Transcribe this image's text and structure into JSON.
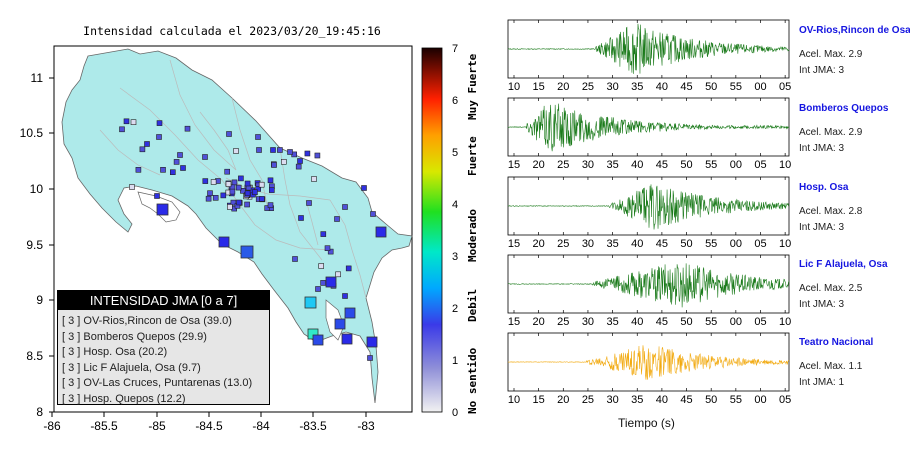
{
  "map": {
    "title": "Intensidad calculada el 2023/03/20_19:45:16",
    "x_ticks": [
      "-86",
      "-85.5",
      "-85",
      "-84.5",
      "-84",
      "-83.5",
      "-83"
    ],
    "y_ticks": [
      "8",
      "8.5",
      "9",
      "9.5",
      "10",
      "10.5",
      "11"
    ],
    "colorbar_ticks": [
      "0",
      "1",
      "2",
      "3",
      "4",
      "5",
      "6",
      "7"
    ],
    "colorbar_categories": [
      "No sentido",
      "Debil",
      "Moderado",
      "Fuerte",
      "Muy Fuerte"
    ],
    "colors": {
      "land": "#aeeaea",
      "boundary": "#c0c0c0",
      "outline": "#666666",
      "small_marker": "#4a4ae0",
      "large_marker": "#2828e8",
      "marker_cyan": "#20c0f0",
      "marker_green": "#30e8c0"
    }
  },
  "legend": {
    "title": "INTENSIDAD JMA [0 a 7]",
    "rows": [
      "[ 3 ]  OV-Rios,Rincon de Osa (39.0)",
      "[ 3 ]  Bomberos Quepos (29.9)",
      "[ 3 ]  Hosp. Osa (20.2)",
      "[ 3 ]  Lic F Alajuela, Osa (9.7)",
      "[ 3 ]  OV-Las Cruces, Puntarenas (13.0)",
      "[ 3 ]  Hosp. Quepos (12.2)"
    ]
  },
  "chart_data": {
    "type": "waveform",
    "xlabel": "Tiempo (s)",
    "stations": [
      {
        "name": "OV-Rios,Rincon de Osa",
        "acel": "Acel. Max. 2.9",
        "int": "Int JMA: 3",
        "color": "#1a7a1a",
        "ticks": [
          "10",
          "15",
          "20",
          "25",
          "30",
          "35",
          "40",
          "45",
          "50",
          "55",
          "00",
          "05"
        ],
        "onset": 0.31,
        "peak": 0.45,
        "amp": 1.0
      },
      {
        "name": "Bomberos Quepos",
        "acel": "Acel. Max. 2.9",
        "int": "Int JMA: 3",
        "color": "#1a7a1a",
        "ticks": [
          "15",
          "20",
          "25",
          "30",
          "35",
          "40",
          "45",
          "50",
          "55",
          "00",
          "05",
          "10"
        ],
        "onset": 0.06,
        "peak": 0.15,
        "amp": 1.0
      },
      {
        "name": "Hosp. Osa",
        "acel": "Acel. Max. 2.8",
        "int": "Int JMA: 3",
        "color": "#1a7a1a",
        "ticks": [
          "15",
          "20",
          "25",
          "30",
          "35",
          "40",
          "45",
          "50",
          "55",
          "00",
          "05",
          "10"
        ],
        "onset": 0.36,
        "peak": 0.52,
        "amp": 0.9
      },
      {
        "name": "Lic F Alajuela, Osa",
        "acel": "Acel. Max. 2.5",
        "int": "Int JMA: 3",
        "color": "#1a7a1a",
        "ticks": [
          "15",
          "20",
          "25",
          "30",
          "35",
          "40",
          "45",
          "50",
          "55",
          "00",
          "05",
          "10"
        ],
        "onset": 0.3,
        "peak": 0.62,
        "amp": 0.9
      },
      {
        "name": "Teatro Nacional",
        "acel": "Acel. Max. 1.1",
        "int": "Int JMA: 1",
        "color": "#f2aa10",
        "ticks": [
          "10",
          "15",
          "20",
          "25",
          "30",
          "35",
          "40",
          "45",
          "50",
          "55",
          "00",
          "05"
        ],
        "onset": 0.28,
        "peak": 0.5,
        "amp": 0.7
      }
    ]
  }
}
